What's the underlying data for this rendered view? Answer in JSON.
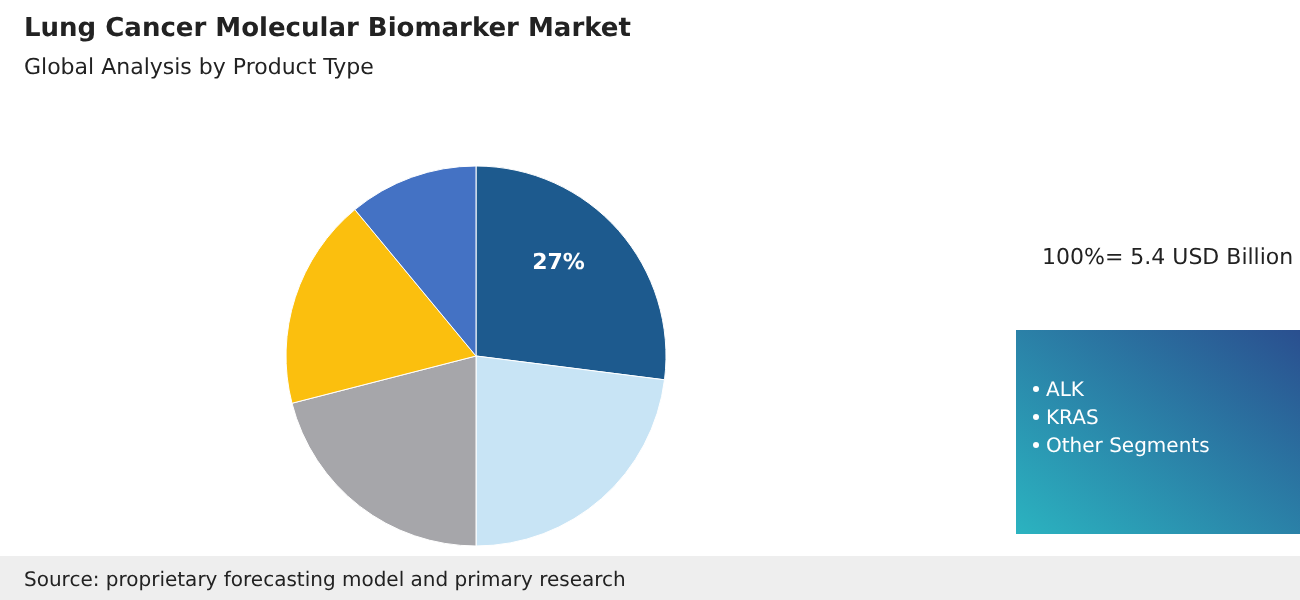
{
  "chart_data": {
    "type": "pie",
    "title": "Lung Cancer Molecular Biomarker Market",
    "subtitle": "Global Analysis by Product Type",
    "categories": [
      null,
      null,
      null,
      null,
      null
    ],
    "values": [
      27,
      23,
      21,
      18,
      11
    ],
    "colors": [
      "#1d5a8e",
      "#c8e4f5",
      "#a6a6aa",
      "#fbbf0e",
      "#4472c4"
    ],
    "value_labels": [
      "27%",
      null,
      null,
      null,
      null
    ],
    "annotations": [
      "100%= 5.4 USD Billion",
      "ALK",
      "KRAS",
      "Other Segments",
      "Source: proprietary forecasting model and primary research"
    ]
  }
}
